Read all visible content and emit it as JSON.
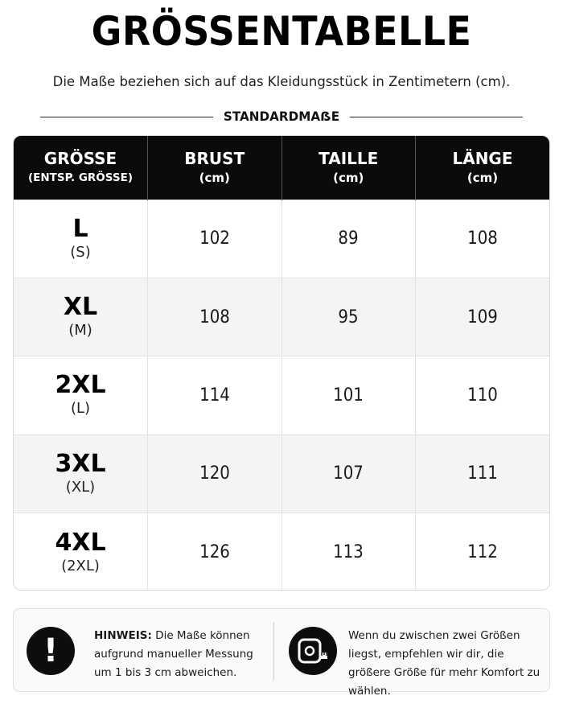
{
  "header": {
    "title": "GRÖSSENTABELLE",
    "subtitle": "Die Maße beziehen sich auf das Kleidungsstück in Zentimetern (cm).",
    "section_label": "STANDARDMAẞE"
  },
  "table": {
    "columns": [
      {
        "label": "GRÖSSE",
        "sub": "(ENTSP. GRÖSSE)"
      },
      {
        "label": "BRUST",
        "sub": "(cm)"
      },
      {
        "label": "TAILLE",
        "sub": "(cm)"
      },
      {
        "label": "LÄNGE",
        "sub": "(cm)"
      }
    ],
    "rows": [
      {
        "size": "L",
        "equivalent": "(S)",
        "brust": "102",
        "taille": "89",
        "laenge": "108"
      },
      {
        "size": "XL",
        "equivalent": "(M)",
        "brust": "108",
        "taille": "95",
        "laenge": "109"
      },
      {
        "size": "2XL",
        "equivalent": "(L)",
        "brust": "114",
        "taille": "101",
        "laenge": "110"
      },
      {
        "size": "3XL",
        "equivalent": "(XL)",
        "brust": "120",
        "taille": "107",
        "laenge": "111"
      },
      {
        "size": "4XL",
        "equivalent": "(2XL)",
        "brust": "126",
        "taille": "113",
        "laenge": "112"
      }
    ]
  },
  "notes": {
    "hint_label": "HINWEIS:",
    "hint_text": " Die Maße können aufgrund manueller Messung um 1 bis 3 cm abweichen.",
    "hint_icon": "exclamation-icon",
    "tip_text": "Wenn du zwischen zwei Größen liegst, empfehlen wir dir, die größere Größe für mehr Komfort zu wählen.",
    "tip_icon": "measuring-tape-icon"
  },
  "colors": {
    "header_background": "#0b0b0b",
    "row_alt_background": "#f4f4f4",
    "note_background": "#fafafa"
  }
}
